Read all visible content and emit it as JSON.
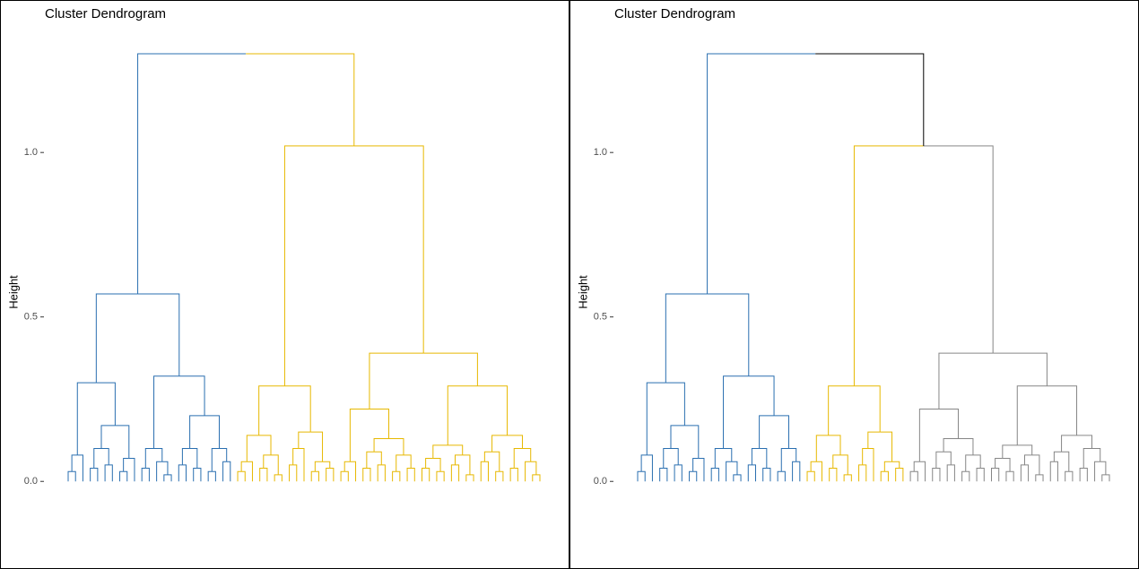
{
  "chart_data": [
    {
      "type": "dendrogram",
      "title": "Cluster Dendrogram",
      "ylabel": "Height",
      "ylim": [
        -0.25,
        1.45
      ],
      "yticks": [
        {
          "value": 0,
          "label": "0.0"
        },
        {
          "value": 0.5,
          "label": "0.5"
        },
        {
          "value": 1,
          "label": "1.0"
        }
      ],
      "k": 2,
      "colors": [
        "#2a6fb0",
        "#e7b800"
      ],
      "above_cut_color": "#000000",
      "tree": [
        1.3,
        [
          0.57,
          [
            0.3,
            [
              0.08,
              [
                0.03,
                0,
                0
              ],
              0
            ],
            [
              0.17,
              [
                0.1,
                [
                  0.04,
                  0,
                  0
                ],
                [
                  0.05,
                  0,
                  0
                ]
              ],
              [
                0.07,
                [
                  0.03,
                  0,
                  0
                ],
                0
              ]
            ]
          ],
          [
            0.32,
            [
              0.1,
              [
                0.04,
                0,
                0
              ],
              [
                0.06,
                0,
                [
                  0.02,
                  0,
                  0
                ]
              ]
            ],
            [
              0.2,
              [
                0.1,
                [
                  0.05,
                  0,
                  0
                ],
                [
                  0.04,
                  0,
                  0
                ]
              ],
              [
                0.1,
                [
                  0.03,
                  0,
                  0
                ],
                [
                  0.06,
                  0,
                  0
                ]
              ]
            ]
          ]
        ],
        [
          1.02,
          [
            0.29,
            [
              0.14,
              [
                0.06,
                [
                  0.03,
                  0,
                  0
                ],
                0
              ],
              [
                0.08,
                [
                  0.04,
                  0,
                  0
                ],
                [
                  0.02,
                  0,
                  0
                ]
              ]
            ],
            [
              0.15,
              [
                0.1,
                [
                  0.05,
                  0,
                  0
                ],
                0
              ],
              [
                0.06,
                [
                  0.03,
                  0,
                  0
                ],
                [
                  0.04,
                  0,
                  0
                ]
              ]
            ]
          ],
          [
            0.39,
            [
              0.22,
              [
                0.06,
                [
                  0.03,
                  0,
                  0
                ],
                0
              ],
              [
                0.13,
                [
                  0.09,
                  [
                    0.04,
                    0,
                    0
                  ],
                  [
                    0.05,
                    0,
                    0
                  ]
                ],
                [
                  0.08,
                  [
                    0.03,
                    0,
                    0
                  ],
                  [
                    0.04,
                    0,
                    0
                  ]
                ]
              ]
            ],
            [
              0.29,
              [
                0.11,
                [
                  0.07,
                  [
                    0.04,
                    0,
                    0
                  ],
                  [
                    0.03,
                    0,
                    0
                  ]
                ],
                [
                  0.08,
                  [
                    0.05,
                    0,
                    0
                  ],
                  [
                    0.02,
                    0,
                    0
                  ]
                ]
              ],
              [
                0.14,
                [
                  0.09,
                  [
                    0.06,
                    0,
                    0
                  ],
                  [
                    0.03,
                    0,
                    0
                  ]
                ],
                [
                  0.1,
                  [
                    0.04,
                    0,
                    0
                  ],
                  [
                    0.06,
                    0,
                    [
                      0.02,
                      0,
                      0
                    ]
                  ]
                ]
              ]
            ]
          ]
        ]
      ]
    },
    {
      "type": "dendrogram",
      "title": "Cluster Dendrogram",
      "ylabel": "Height",
      "ylim": [
        -0.25,
        1.45
      ],
      "yticks": [
        {
          "value": 0,
          "label": "0.0"
        },
        {
          "value": 0.5,
          "label": "0.5"
        },
        {
          "value": 1,
          "label": "1.0"
        }
      ],
      "k": 3,
      "colors": [
        "#2a6fb0",
        "#e7b800",
        "#868686"
      ],
      "above_cut_color": "#000000",
      "tree": [
        1.3,
        [
          0.57,
          [
            0.3,
            [
              0.08,
              [
                0.03,
                0,
                0
              ],
              0
            ],
            [
              0.17,
              [
                0.1,
                [
                  0.04,
                  0,
                  0
                ],
                [
                  0.05,
                  0,
                  0
                ]
              ],
              [
                0.07,
                [
                  0.03,
                  0,
                  0
                ],
                0
              ]
            ]
          ],
          [
            0.32,
            [
              0.1,
              [
                0.04,
                0,
                0
              ],
              [
                0.06,
                0,
                [
                  0.02,
                  0,
                  0
                ]
              ]
            ],
            [
              0.2,
              [
                0.1,
                [
                  0.05,
                  0,
                  0
                ],
                [
                  0.04,
                  0,
                  0
                ]
              ],
              [
                0.1,
                [
                  0.03,
                  0,
                  0
                ],
                [
                  0.06,
                  0,
                  0
                ]
              ]
            ]
          ]
        ],
        [
          1.02,
          [
            0.29,
            [
              0.14,
              [
                0.06,
                [
                  0.03,
                  0,
                  0
                ],
                0
              ],
              [
                0.08,
                [
                  0.04,
                  0,
                  0
                ],
                [
                  0.02,
                  0,
                  0
                ]
              ]
            ],
            [
              0.15,
              [
                0.1,
                [
                  0.05,
                  0,
                  0
                ],
                0
              ],
              [
                0.06,
                [
                  0.03,
                  0,
                  0
                ],
                [
                  0.04,
                  0,
                  0
                ]
              ]
            ]
          ],
          [
            0.39,
            [
              0.22,
              [
                0.06,
                [
                  0.03,
                  0,
                  0
                ],
                0
              ],
              [
                0.13,
                [
                  0.09,
                  [
                    0.04,
                    0,
                    0
                  ],
                  [
                    0.05,
                    0,
                    0
                  ]
                ],
                [
                  0.08,
                  [
                    0.03,
                    0,
                    0
                  ],
                  [
                    0.04,
                    0,
                    0
                  ]
                ]
              ]
            ],
            [
              0.29,
              [
                0.11,
                [
                  0.07,
                  [
                    0.04,
                    0,
                    0
                  ],
                  [
                    0.03,
                    0,
                    0
                  ]
                ],
                [
                  0.08,
                  [
                    0.05,
                    0,
                    0
                  ],
                  [
                    0.02,
                    0,
                    0
                  ]
                ]
              ],
              [
                0.14,
                [
                  0.09,
                  [
                    0.06,
                    0,
                    0
                  ],
                  [
                    0.03,
                    0,
                    0
                  ]
                ],
                [
                  0.1,
                  [
                    0.04,
                    0,
                    0
                  ],
                  [
                    0.06,
                    0,
                    [
                      0.02,
                      0,
                      0
                    ]
                  ]
                ]
              ]
            ]
          ]
        ]
      ]
    }
  ]
}
